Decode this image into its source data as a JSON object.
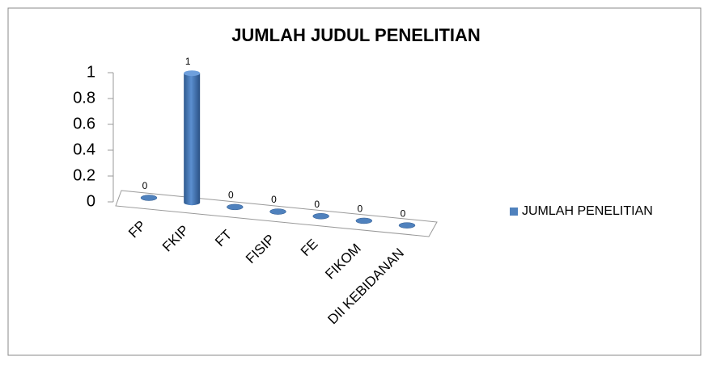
{
  "chart_data": {
    "type": "bar3d",
    "title": "JUMLAH JUDUL PENELITIAN",
    "categories": [
      "FP",
      "FKIP",
      "FT",
      "FISIP",
      "FE",
      "FIKOM",
      "DII KEBIDANAN"
    ],
    "series": [
      {
        "name": "JUMLAH PENELITIAN",
        "color": "#4f81bd",
        "values": [
          0,
          1,
          0,
          0,
          0,
          0,
          0
        ]
      }
    ],
    "ylim": [
      0,
      1
    ],
    "yticks": [
      0,
      0.2,
      0.4,
      0.6,
      0.8,
      1
    ],
    "legend": "right"
  }
}
